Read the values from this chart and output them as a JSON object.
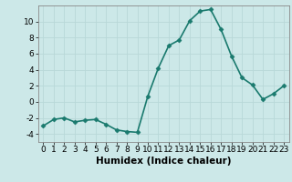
{
  "x": [
    0,
    1,
    2,
    3,
    4,
    5,
    6,
    7,
    8,
    9,
    10,
    11,
    12,
    13,
    14,
    15,
    16,
    17,
    18,
    19,
    20,
    21,
    22,
    23
  ],
  "y": [
    -3.0,
    -2.2,
    -2.0,
    -2.5,
    -2.3,
    -2.2,
    -2.8,
    -3.5,
    -3.7,
    -3.8,
    0.7,
    4.2,
    7.0,
    7.7,
    10.1,
    11.3,
    11.5,
    9.0,
    5.7,
    3.0,
    2.1,
    0.3,
    1.0,
    2.0
  ],
  "line_color": "#1a7a6e",
  "marker": "D",
  "marker_size": 2.5,
  "bg_color": "#cce8e8",
  "grid_color": "#b8d8d8",
  "xlabel": "Humidex (Indice chaleur)",
  "xlim": [
    -0.5,
    23.5
  ],
  "ylim": [
    -5,
    12
  ],
  "yticks": [
    -4,
    -2,
    0,
    2,
    4,
    6,
    8,
    10
  ],
  "xticks": [
    0,
    1,
    2,
    3,
    4,
    5,
    6,
    7,
    8,
    9,
    10,
    11,
    12,
    13,
    14,
    15,
    16,
    17,
    18,
    19,
    20,
    21,
    22,
    23
  ],
  "xlabel_fontsize": 7.5,
  "tick_fontsize": 6.5,
  "line_width": 1.2
}
